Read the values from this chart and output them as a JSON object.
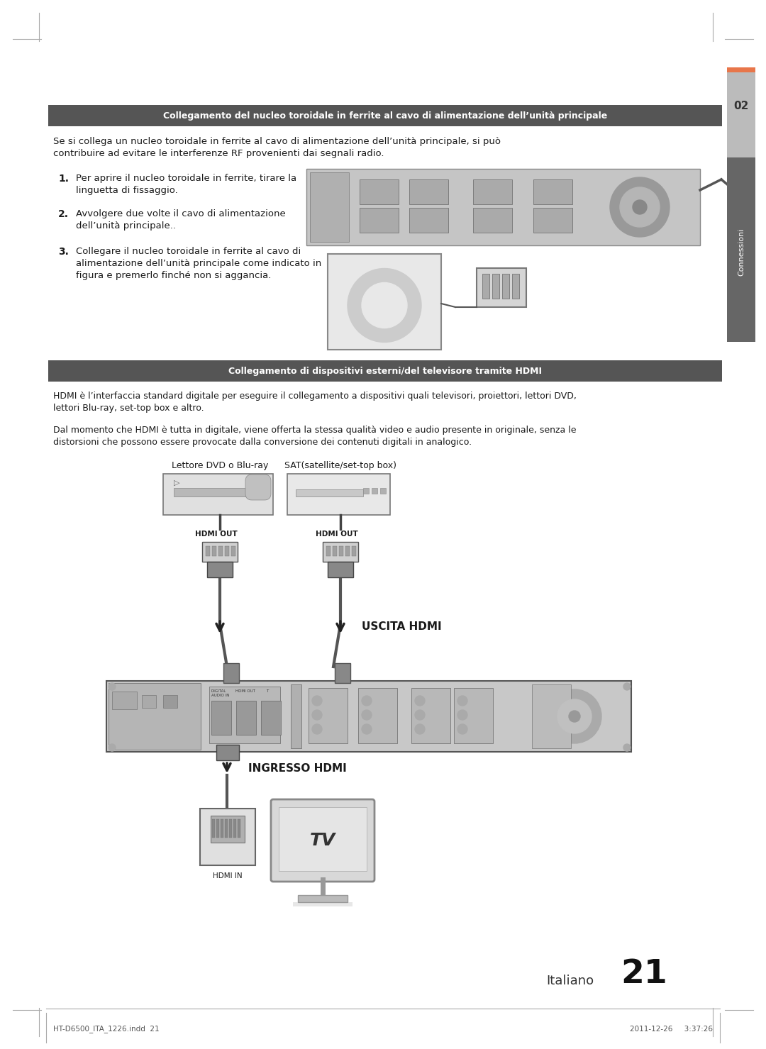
{
  "page_bg": "#ffffff",
  "tab_bg": "#7a7a7a",
  "tab_orange": "#e8764a",
  "tab_label": "02",
  "tab_side_label": "Connessioni",
  "section1_header": "Collegamento del nucleo toroidale in ferrite al cavo di alimentazione dell’unità principale",
  "section1_header_bg": "#555555",
  "section1_header_color": "#ffffff",
  "section1_intro": "Se si collega un nucleo toroidale in ferrite al cavo di alimentazione dell’unità principale, si può\ncontribuire ad evitare le interferenze RF provenienti dai segnali radio.",
  "section1_item1_num": "1.",
  "section1_item1": "Per aprire il nucleo toroidale in ferrite, tirare la\nlinguetta di fissaggio.",
  "section1_item2_num": "2.",
  "section1_item2": "Avvolgere due volte il cavo di alimentazione\ndell’unità principale..",
  "section1_item3_num": "3.",
  "section1_item3": "Collegare il nucleo toroidale in ferrite al cavo di\nalimentazione dell’unità principale come indicato in\nfigura e premerlo finché non si aggancia.",
  "section2_header": "Collegamento di dispositivi esterni/del televisore tramite HDMI",
  "section2_header_bg": "#555555",
  "section2_header_color": "#ffffff",
  "section2_intro1": "HDMI è l’interfaccia standard digitale per eseguire il collegamento a dispositivi quali televisori, proiettori, lettori DVD,\nlettori Blu-ray, set-top box e altro.",
  "section2_intro2": "Dal momento che HDMI è tutta in digitale, viene offerta la stessa qualità video e audio presente in originale, senza le\ndistorsioni che possono essere provocate dalla conversione dei contenuti digitali in analogico.",
  "label_dvd": "Lettore DVD o Blu-ray",
  "label_sat": "SAT(satellite/set-top box)",
  "label_hdmi_out1": "HDMI OUT",
  "label_hdmi_out2": "HDMI OUT",
  "label_uscita": "USCITA HDMI",
  "label_ingresso": "INGRESSO HDMI",
  "label_tv": "TV",
  "label_hdmi_in": "HDMI IN",
  "footer_left": "HT-D6500_ITA_1226.indd  21",
  "footer_right": "2011-12-26     3:37:26",
  "page_number": "21",
  "page_lang": "Italiano",
  "text_color": "#1a1a1a",
  "gray_mid": "#888888",
  "gray_light": "#cccccc",
  "gray_dark": "#555555"
}
